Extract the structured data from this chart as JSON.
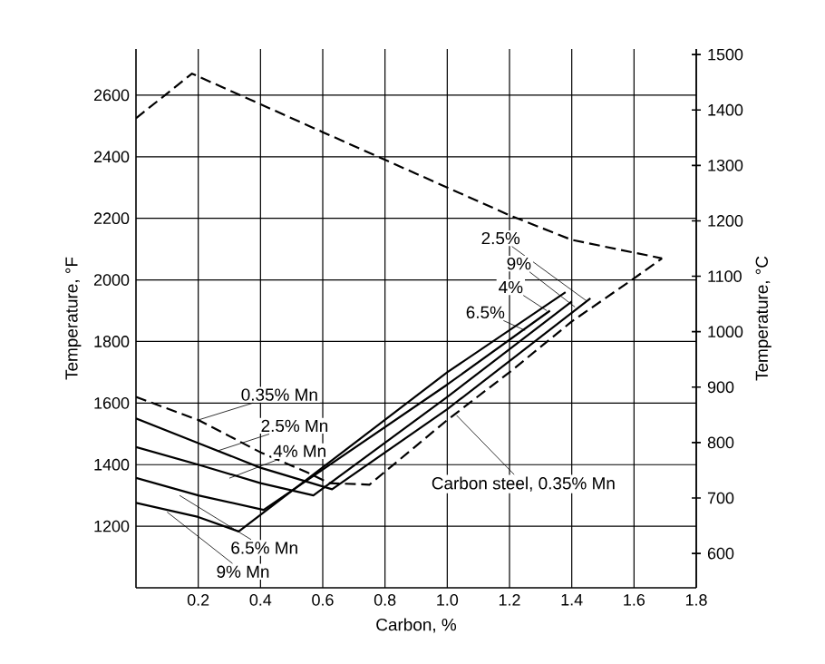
{
  "chart_data": {
    "type": "line",
    "xlabel": "Carbon, %",
    "ylabel": "Temperature, °F",
    "y2label": "Temperature, °C",
    "xlim": [
      0,
      1.8
    ],
    "xticks": [
      0.2,
      0.4,
      0.6,
      0.8,
      {
        "value": 1.0,
        "label": "1.0"
      },
      1.2,
      1.4,
      1.6,
      1.8
    ],
    "ylim": [
      1000,
      2750
    ],
    "yticks": [
      1200,
      1400,
      1600,
      1800,
      2000,
      2200,
      2400,
      2600
    ],
    "y2lim": [
      538,
      1510
    ],
    "y2ticks": [
      600,
      700,
      800,
      900,
      1000,
      1100,
      1200,
      1300,
      1400,
      1500
    ],
    "grid": true,
    "series": [
      {
        "color": "#000000",
        "line_style": "dashed",
        "x": [
          0,
          0.18,
          0.6,
          1.0,
          1.2,
          1.4,
          1.69
        ],
        "values": [
          2525,
          2670,
          2480,
          2300,
          2210,
          2130,
          2070
        ]
      },
      {
        "color": "#000000",
        "line_style": "dashed",
        "x": [
          0,
          0.2,
          0.4,
          0.55,
          0.62,
          0.75,
          1.0,
          1.2,
          1.4,
          1.6,
          1.69
        ],
        "values": [
          1620,
          1545,
          1440,
          1375,
          1340,
          1335,
          1545,
          1700,
          1865,
          2005,
          2070
        ]
      },
      {
        "color": "#000000",
        "line_style": "solid",
        "x": [
          0,
          0.2,
          0.4,
          0.63,
          1.0,
          1.46
        ],
        "values": [
          1550,
          1470,
          1390,
          1320,
          1580,
          1940
        ]
      },
      {
        "color": "#000000",
        "line_style": "solid",
        "x": [
          0,
          0.2,
          0.4,
          0.57,
          1.0,
          1.4
        ],
        "values": [
          1457,
          1400,
          1340,
          1300,
          1620,
          1930
        ]
      },
      {
        "color": "#000000",
        "line_style": "solid",
        "x": [
          0,
          0.2,
          0.41,
          1.0,
          1.33
        ],
        "values": [
          1357,
          1300,
          1253,
          1660,
          1900
        ]
      },
      {
        "color": "#000000",
        "line_style": "solid",
        "x": [
          0,
          0.2,
          0.33,
          1.0,
          1.38
        ],
        "values": [
          1276,
          1230,
          1183,
          1700,
          1960
        ]
      }
    ],
    "annotations": [
      {
        "text": "0.35% Mn",
        "x": 0.2,
        "y": 1545
      },
      {
        "text": "2.5% Mn",
        "x": 0.26,
        "y": 1444
      },
      {
        "text": "4% Mn",
        "x": 0.3,
        "y": 1356
      },
      {
        "text": "6.5% Mn",
        "x": 0.14,
        "y": 1300
      },
      {
        "text": "9% Mn",
        "x": 0.1,
        "y": 1246
      },
      {
        "text": "Carbon steel, 0.35% Mn",
        "x": 1.03,
        "y": 1560
      },
      {
        "text": "2.5%",
        "x": 1.45,
        "y": 1930
      },
      {
        "text": "9%",
        "x": 1.41,
        "y": 1912
      },
      {
        "text": "4%",
        "x": 1.32,
        "y": 1900
      },
      {
        "text": "6.5%",
        "x": 1.25,
        "y": 1836
      }
    ]
  }
}
